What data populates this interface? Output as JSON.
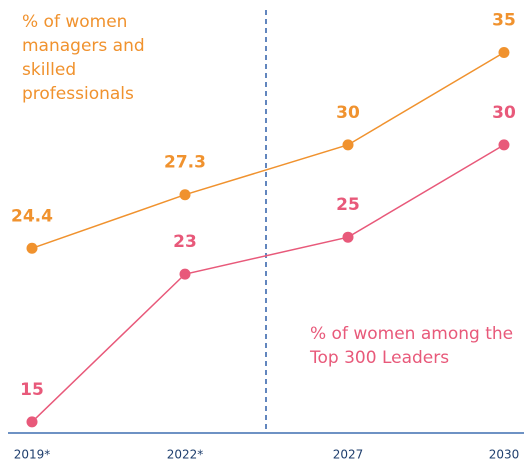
{
  "chart_data": {
    "type": "line",
    "categories": [
      "2019*",
      "2022*",
      "2027",
      "2030"
    ],
    "series": [
      {
        "name": "% of women managers and skilled professionals",
        "color": "#f0922e",
        "values": [
          24.4,
          27.3,
          30,
          35
        ]
      },
      {
        "name": "% of women among the Top 300 Leaders",
        "color": "#e8597a",
        "values": [
          15,
          23,
          25,
          30
        ]
      }
    ],
    "ylim": [
      14.4,
      37.3
    ]
  }
}
